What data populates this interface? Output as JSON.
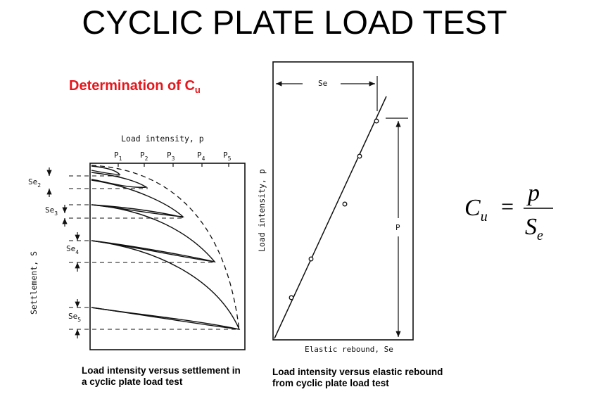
{
  "title": "CYCLIC PLATE LOAD TEST",
  "subtitle": {
    "main": "Determination of C",
    "sub": "u"
  },
  "left_figure": {
    "top_axis_label": "Load intensity, p",
    "side_axis_label": "Settlement, S",
    "load_ticks": [
      {
        "base": "P",
        "sub": "1"
      },
      {
        "base": "P",
        "sub": "2"
      },
      {
        "base": "P",
        "sub": "3"
      },
      {
        "base": "P",
        "sub": "4"
      },
      {
        "base": "P",
        "sub": "5"
      }
    ],
    "rebound_labels": [
      {
        "base": "Se",
        "sub": "2"
      },
      {
        "base": "Se",
        "sub": "3"
      },
      {
        "base": "Se",
        "sub": "4"
      },
      {
        "base": "Se",
        "sub": "5"
      }
    ],
    "caption_line1": "Load intensity versus settlement in",
    "caption_line2": "a cyclic plate load test"
  },
  "right_figure": {
    "x_axis_label": "Elastic  rebound, Se",
    "y_axis_label": "Load intensity, p",
    "top_dimension_label": "Se",
    "side_dimension_label": "P",
    "caption_line1": "Load intensity versus elastic rebound",
    "caption_line2": "from cyclic plate load test"
  },
  "formula": {
    "lhs_base": "C",
    "lhs_sub": "u",
    "equals": "=",
    "numerator": "p",
    "denominator_base": "S",
    "denominator_sub": "e"
  }
}
